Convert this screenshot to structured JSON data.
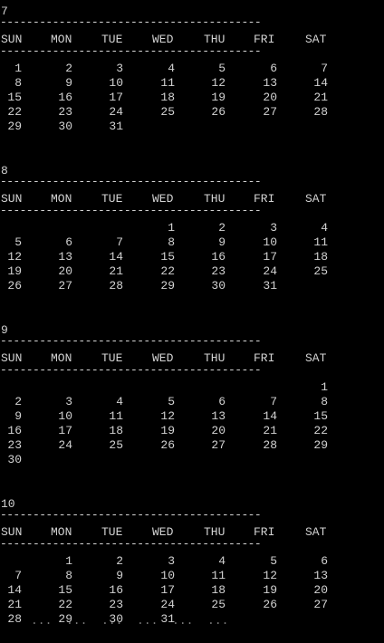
{
  "console": {
    "rule_text": "----------------------------------------",
    "day_names": [
      "SUN",
      "MON",
      "TUE",
      "WED",
      "THU",
      "FRI",
      "SAT"
    ],
    "footer_fragment": "...  ...  ...  ...  ...  ..."
  },
  "months": [
    {
      "title": "7",
      "weeks": [
        [
          "1",
          "2",
          "3",
          "4",
          "5",
          "6",
          "7"
        ],
        [
          "8",
          "9",
          "10",
          "11",
          "12",
          "13",
          "14"
        ],
        [
          "15",
          "16",
          "17",
          "18",
          "19",
          "20",
          "21"
        ],
        [
          "22",
          "23",
          "24",
          "25",
          "26",
          "27",
          "28"
        ],
        [
          "29",
          "30",
          "31",
          "",
          "",
          "",
          ""
        ]
      ]
    },
    {
      "title": "8",
      "weeks": [
        [
          "",
          "",
          "",
          "1",
          "2",
          "3",
          "4"
        ],
        [
          "5",
          "6",
          "7",
          "8",
          "9",
          "10",
          "11"
        ],
        [
          "12",
          "13",
          "14",
          "15",
          "16",
          "17",
          "18"
        ],
        [
          "19",
          "20",
          "21",
          "22",
          "23",
          "24",
          "25"
        ],
        [
          "26",
          "27",
          "28",
          "29",
          "30",
          "31",
          ""
        ]
      ]
    },
    {
      "title": "9",
      "weeks": [
        [
          "",
          "",
          "",
          "",
          "",
          "",
          "1"
        ],
        [
          "2",
          "3",
          "4",
          "5",
          "6",
          "7",
          "8"
        ],
        [
          "9",
          "10",
          "11",
          "12",
          "13",
          "14",
          "15"
        ],
        [
          "16",
          "17",
          "18",
          "19",
          "20",
          "21",
          "22"
        ],
        [
          "23",
          "24",
          "25",
          "26",
          "27",
          "28",
          "29"
        ],
        [
          "30",
          "",
          "",
          "",
          "",
          "",
          ""
        ]
      ]
    },
    {
      "title": "10",
      "weeks": [
        [
          "",
          "1",
          "2",
          "3",
          "4",
          "5",
          "6"
        ],
        [
          "7",
          "8",
          "9",
          "10",
          "11",
          "12",
          "13"
        ],
        [
          "14",
          "15",
          "16",
          "17",
          "18",
          "19",
          "20"
        ],
        [
          "21",
          "22",
          "23",
          "24",
          "25",
          "26",
          "27"
        ],
        [
          "28",
          "29",
          "30",
          "31",
          "",
          "",
          ""
        ]
      ]
    }
  ]
}
